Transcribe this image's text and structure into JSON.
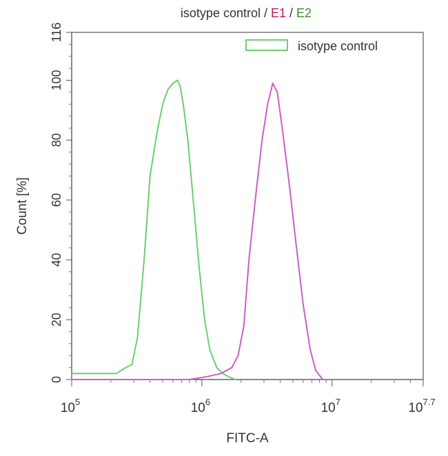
{
  "chart_data": {
    "type": "line",
    "title_parts": [
      {
        "text": "isotype control",
        "color": "#333333"
      },
      {
        "text": " / ",
        "color": "#333333"
      },
      {
        "text": "E1",
        "color": "#c0185a"
      },
      {
        "text": " / ",
        "color": "#333333"
      },
      {
        "text": "E2",
        "color": "#3a8a2a"
      }
    ],
    "xlabel": "FITC-A",
    "ylabel": "Count [%]",
    "x_scale": "log10",
    "xlim": [
      100000,
      50118723
    ],
    "ylim": [
      0,
      116
    ],
    "x_ticks": [
      {
        "base": "10",
        "exp": "5",
        "value": 100000
      },
      {
        "base": "10",
        "exp": "6",
        "value": 1000000
      },
      {
        "base": "10",
        "exp": "7",
        "value": 10000000
      },
      {
        "base": "10",
        "exp": "7.7",
        "value": 50118723
      }
    ],
    "y_ticks": [
      "0",
      "20",
      "40",
      "60",
      "80",
      "100",
      "116"
    ],
    "y_tick_values": [
      0,
      20,
      40,
      60,
      80,
      100,
      116
    ],
    "legend": {
      "position": "top-right",
      "entries": [
        {
          "label": "isotype control",
          "color": "#6ccf6c"
        }
      ]
    },
    "grid": false,
    "series": [
      {
        "name": "isotype control",
        "color": "#6ccf6c",
        "x": [
          100000,
          120000,
          150000,
          180000,
          220000,
          260000,
          290000,
          320000,
          360000,
          400000,
          450000,
          500000,
          550000,
          600000,
          650000,
          680000,
          720000,
          780000,
          850000,
          950000,
          1050000,
          1150000,
          1300000,
          1450000,
          1600000,
          1800000
        ],
        "y": [
          2,
          2,
          2,
          2,
          2,
          4,
          5,
          14,
          40,
          68,
          82,
          92,
          97,
          99,
          100,
          98,
          92,
          80,
          62,
          38,
          20,
          10,
          4,
          2,
          1,
          0
        ]
      },
      {
        "name": "E1",
        "color": "#c85ec8",
        "x": [
          100000,
          300000,
          800000,
          1100000,
          1400000,
          1700000,
          1900000,
          2100000,
          2300000,
          2600000,
          2900000,
          3200000,
          3500000,
          3800000,
          4200000,
          4700000,
          5300000,
          6000000,
          6800000,
          7500000,
          8500000
        ],
        "y": [
          0,
          0,
          0,
          1,
          2,
          4,
          8,
          18,
          40,
          62,
          80,
          92,
          99,
          96,
          82,
          65,
          45,
          25,
          10,
          3,
          0
        ]
      }
    ]
  }
}
